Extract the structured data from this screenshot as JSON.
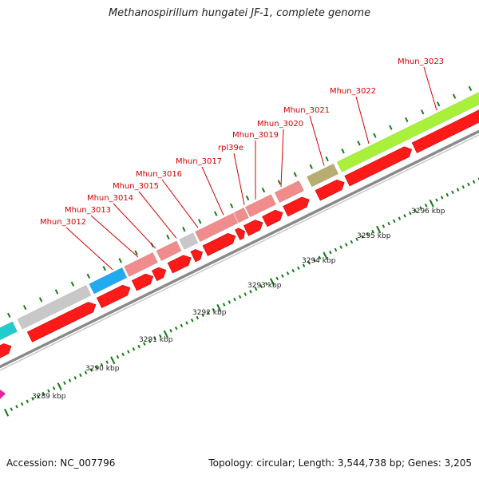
{
  "title": "Methanospirillum hungatei JF-1, complete genome",
  "footer": {
    "accession": "Accession: NC_007796",
    "summary": "Topology: circular; Length: 3,544,738 bp; Genes: 3,205"
  },
  "colors": {
    "gene_label": "#d40000",
    "cds_arrow": "#ff1a1a",
    "backbone": "#8a8a8a",
    "tick": "#1a7a1a",
    "gray": "#c8c8c8",
    "pink": "#f08c8c",
    "blue": "#22aaee",
    "cyan": "#22cccc",
    "olive": "#b8ad70",
    "lime": "#a8f03a",
    "magenta": "#e8209a"
  },
  "kbp_labels": [
    "3289 kbp",
    "3290 kbp",
    "3291 kbp",
    "3292 kbp",
    "3293 kbp",
    "3294 kbp",
    "3295 kbp",
    "3296 kbp"
  ],
  "genes": [
    {
      "label": "Mhun_3012"
    },
    {
      "label": "Mhun_3013"
    },
    {
      "label": "Mhun_3014"
    },
    {
      "label": "Mhun_3015"
    },
    {
      "label": "Mhun_3016"
    },
    {
      "label": "Mhun_3017"
    },
    {
      "label": "rpl39e"
    },
    {
      "label": "Mhun_3019"
    },
    {
      "label": "Mhun_3020"
    },
    {
      "label": "Mhun_3021"
    },
    {
      "label": "Mhun_3022"
    },
    {
      "label": "Mhun_3023"
    }
  ]
}
